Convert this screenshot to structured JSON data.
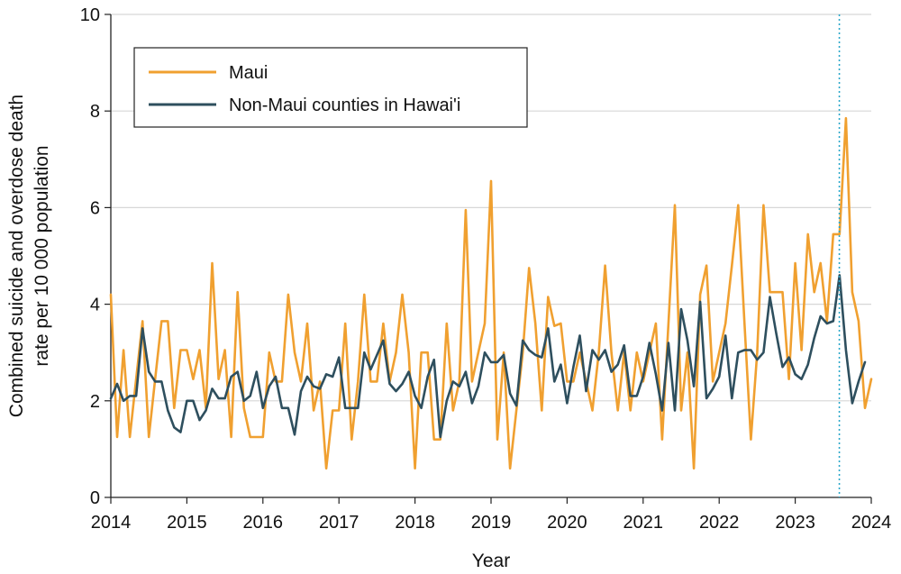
{
  "chart_data": {
    "type": "line",
    "title": "",
    "xlabel": "Year",
    "ylabel": "Combined suicide and overdose death rate per 10 000 population",
    "ylabel_lines": [
      "Combined suicide and overdose death",
      "rate per 10 000 population"
    ],
    "xlim": [
      2014,
      2024
    ],
    "ylim": [
      0,
      10
    ],
    "x_ticks": [
      2014,
      2015,
      2016,
      2017,
      2018,
      2019,
      2020,
      2021,
      2022,
      2023,
      2024
    ],
    "y_ticks": [
      0,
      2,
      4,
      6,
      8,
      10
    ],
    "grid": "horizontal",
    "legend_position": "top-left",
    "reference_line": {
      "x": 2023.58,
      "style": "dotted",
      "color": "#2aa7c9"
    },
    "series": [
      {
        "name": "Maui",
        "color": "#f0a030",
        "values": [
          4.2,
          1.25,
          3.05,
          1.25,
          2.45,
          3.65,
          1.25,
          2.45,
          3.65,
          3.65,
          1.85,
          3.05,
          3.05,
          2.45,
          3.05,
          1.85,
          4.85,
          2.45,
          3.05,
          1.25,
          4.25,
          1.85,
          1.25,
          1.25,
          1.25,
          3.0,
          2.4,
          2.4,
          4.2,
          3.0,
          2.4,
          3.6,
          1.8,
          2.4,
          0.6,
          1.8,
          1.8,
          3.6,
          1.2,
          2.4,
          4.2,
          2.4,
          2.4,
          3.6,
          2.4,
          3.0,
          4.2,
          3.0,
          0.6,
          3.0,
          3.0,
          1.2,
          1.2,
          3.6,
          1.8,
          2.4,
          5.95,
          2.4,
          3.0,
          3.6,
          6.55,
          1.2,
          3.0,
          0.6,
          1.8,
          3.0,
          4.75,
          3.6,
          1.8,
          4.15,
          3.55,
          3.6,
          2.4,
          2.4,
          3.0,
          2.4,
          1.8,
          3.0,
          4.8,
          3.0,
          1.8,
          3.0,
          1.8,
          3.0,
          2.4,
          3.0,
          3.6,
          1.2,
          3.6,
          6.05,
          1.8,
          3.0,
          0.6,
          4.2,
          4.8,
          2.4,
          3.0,
          3.6,
          4.8,
          6.05,
          3.6,
          1.2,
          3.0,
          6.05,
          4.25,
          4.25,
          4.25,
          2.45,
          4.85,
          3.05,
          5.45,
          4.25,
          4.85,
          3.65,
          5.45,
          5.45,
          7.85,
          4.25,
          3.65,
          1.85,
          2.45
        ]
      },
      {
        "name": "Non-Maui counties in Hawai'i",
        "color": "#2e4f5e",
        "values": [
          2.05,
          2.35,
          2.0,
          2.1,
          2.1,
          3.5,
          2.6,
          2.4,
          2.4,
          1.8,
          1.45,
          1.35,
          2.0,
          2.0,
          1.6,
          1.8,
          2.25,
          2.05,
          2.05,
          2.5,
          2.6,
          2.0,
          2.1,
          2.6,
          1.85,
          2.3,
          2.5,
          1.85,
          1.85,
          1.3,
          2.2,
          2.5,
          2.3,
          2.25,
          2.55,
          2.5,
          2.9,
          1.85,
          1.85,
          1.85,
          3.0,
          2.65,
          2.95,
          3.25,
          2.35,
          2.2,
          2.35,
          2.6,
          2.1,
          1.85,
          2.5,
          2.85,
          1.25,
          2.0,
          2.4,
          2.3,
          2.6,
          1.95,
          2.3,
          3.0,
          2.8,
          2.8,
          2.95,
          2.15,
          1.9,
          3.25,
          3.05,
          2.95,
          2.9,
          3.5,
          2.4,
          2.75,
          1.95,
          2.7,
          3.35,
          2.2,
          3.05,
          2.85,
          3.05,
          2.6,
          2.75,
          3.15,
          2.1,
          2.1,
          2.5,
          3.2,
          2.55,
          1.8,
          3.2,
          1.8,
          3.9,
          3.25,
          2.3,
          4.05,
          2.05,
          2.25,
          2.5,
          3.35,
          2.05,
          3.0,
          3.05,
          3.05,
          2.85,
          3.0,
          4.15,
          3.4,
          2.7,
          2.9,
          2.55,
          2.45,
          2.75,
          3.3,
          3.75,
          3.6,
          3.65,
          4.6,
          3.05,
          1.95,
          2.4,
          2.8
        ]
      }
    ]
  }
}
